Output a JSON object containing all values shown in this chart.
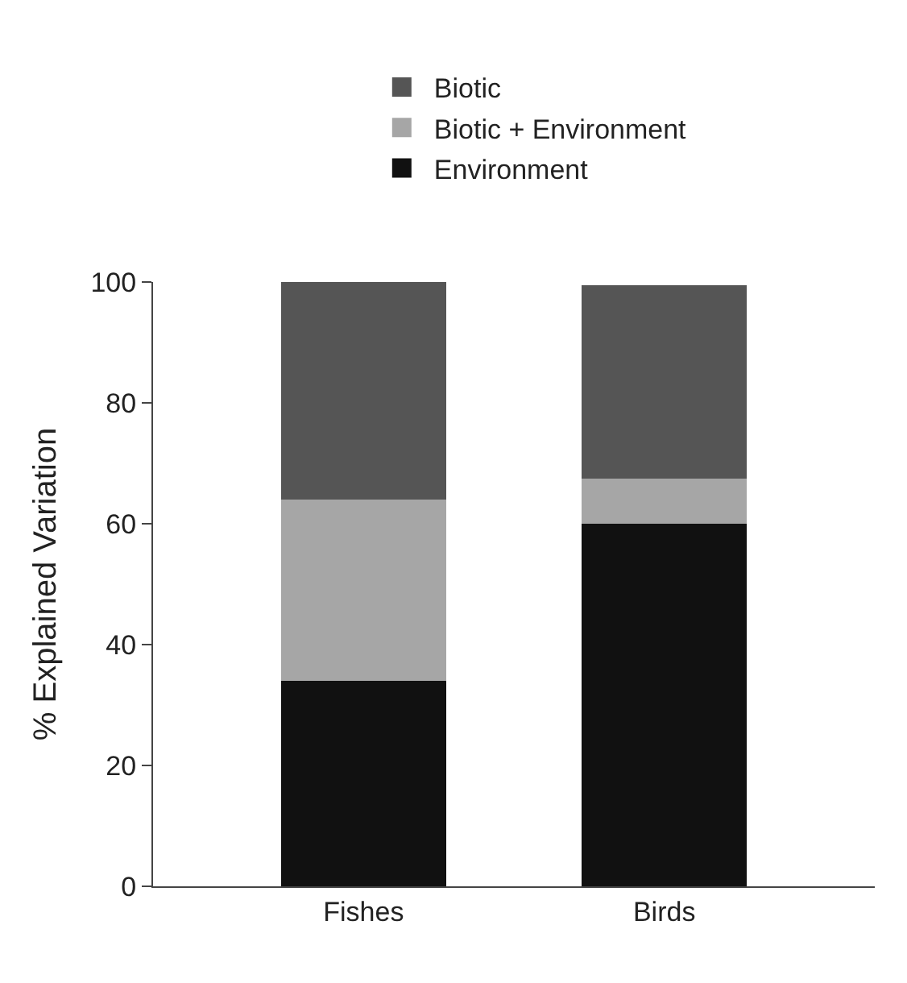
{
  "chart_data": {
    "type": "bar",
    "stacked": true,
    "ylabel": "% Explained Variation",
    "categories": [
      "Fishes",
      "Birds"
    ],
    "series": [
      {
        "name": "Environment",
        "color": "#111111",
        "values": [
          34,
          60
        ]
      },
      {
        "name": "Biotic + Environment",
        "color": "#a6a6a6",
        "values": [
          30,
          7.5
        ]
      },
      {
        "name": "Biotic",
        "color": "#555555",
        "values": [
          36,
          32
        ]
      }
    ],
    "ylim": [
      0,
      100
    ],
    "yticks": [
      0,
      20,
      40,
      60,
      80,
      100
    ],
    "legend": "top"
  }
}
